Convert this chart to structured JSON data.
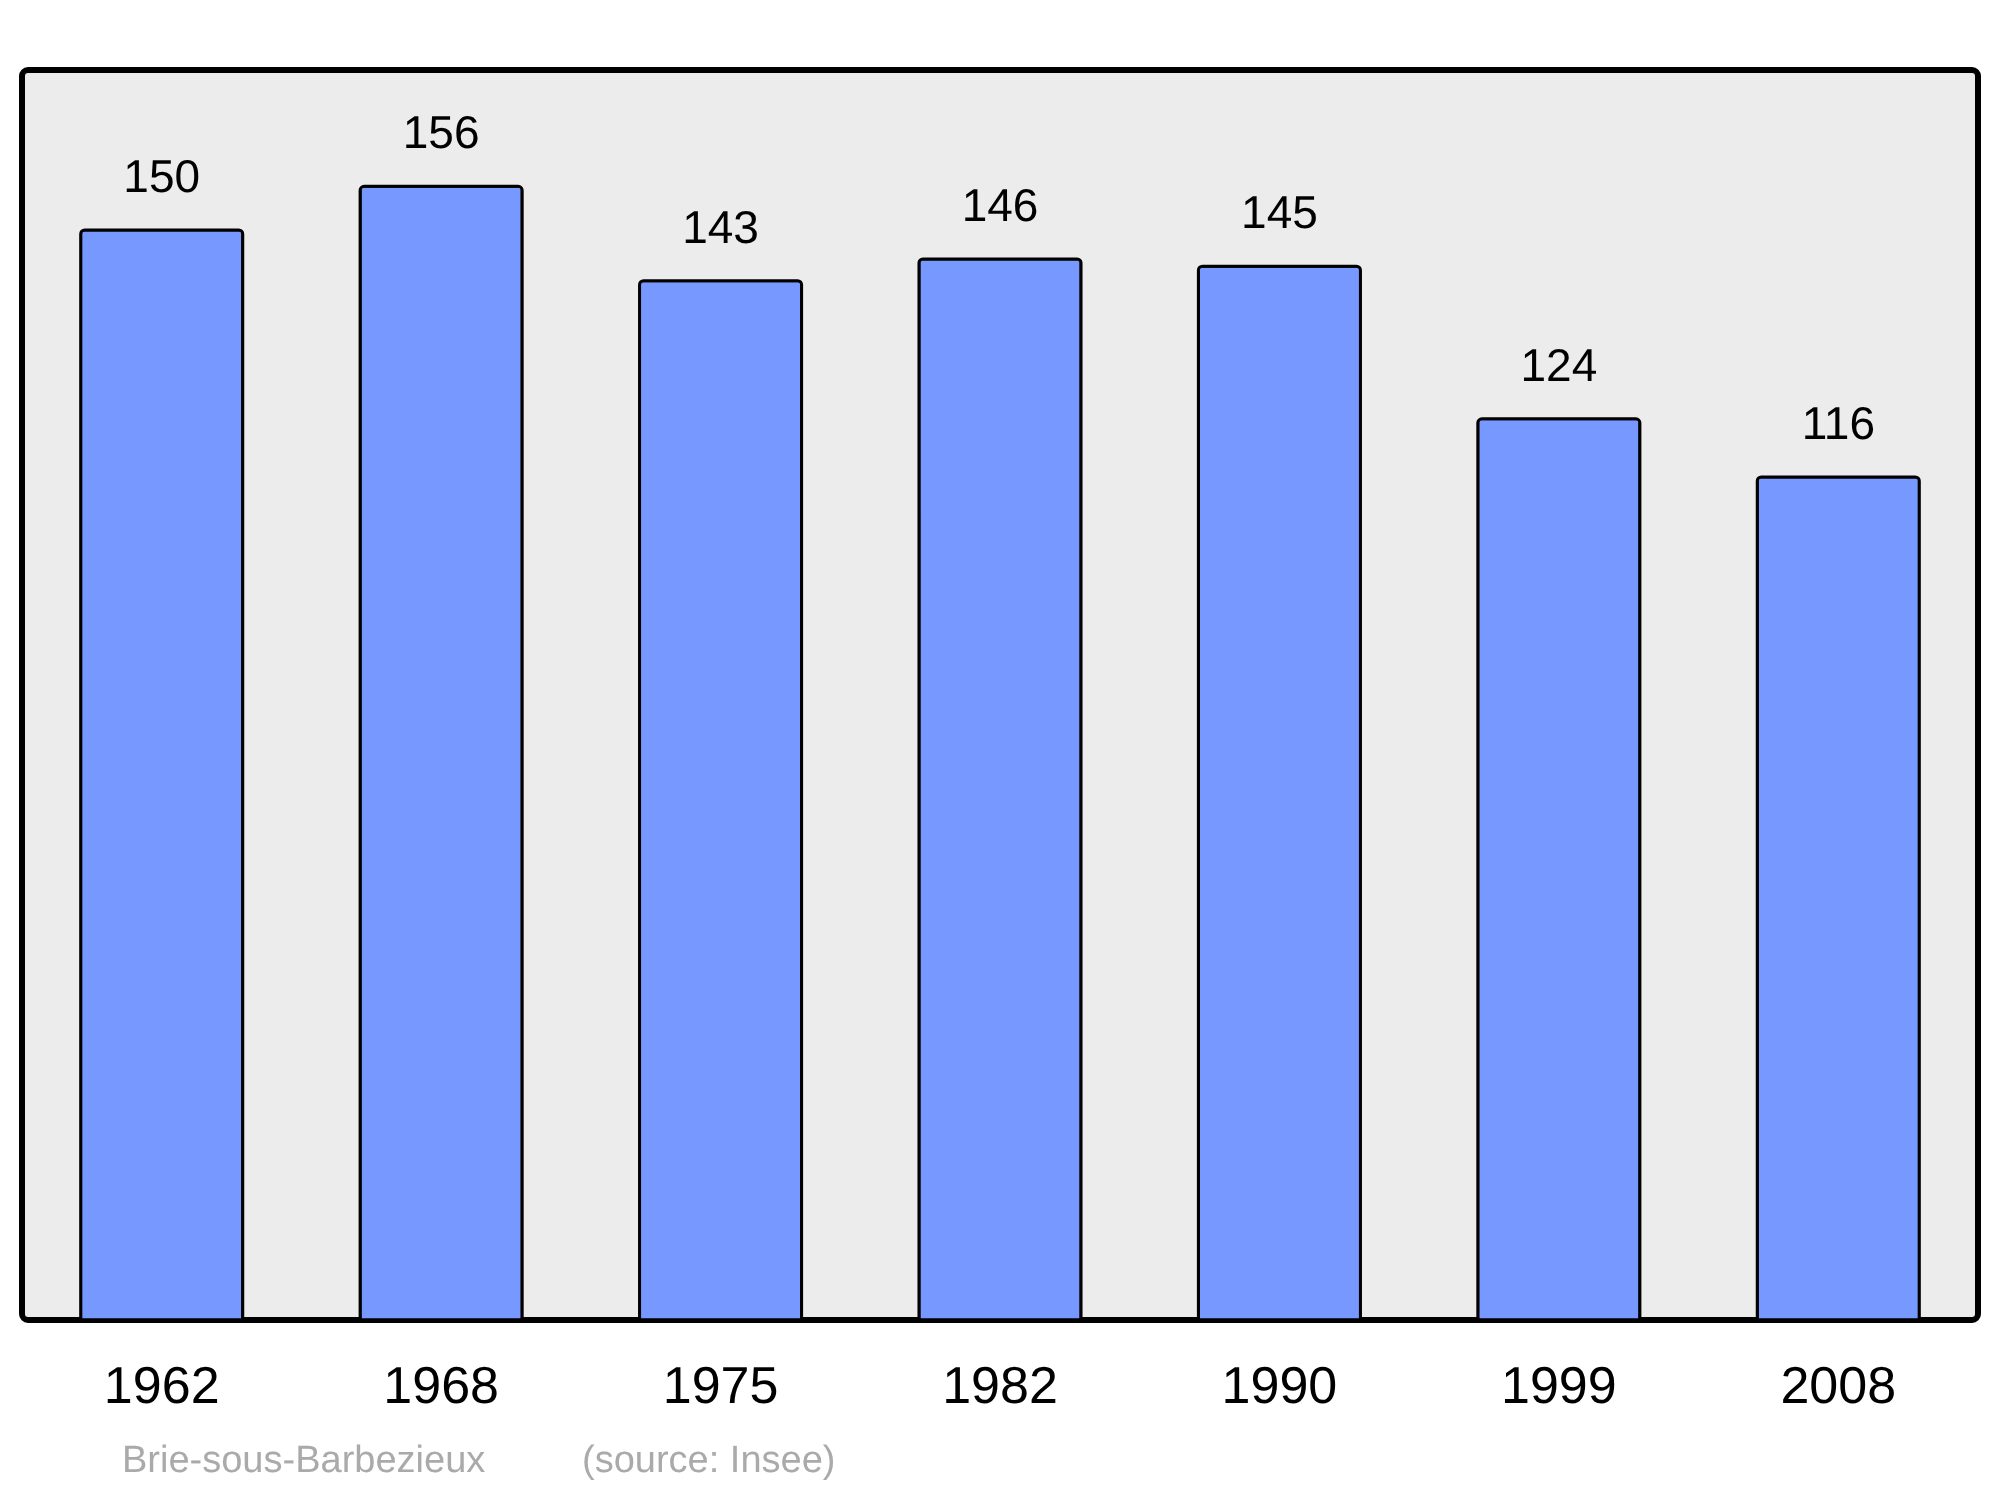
{
  "chart_data": {
    "type": "bar",
    "categories": [
      "1962",
      "1968",
      "1975",
      "1982",
      "1990",
      "1999",
      "2008"
    ],
    "values": [
      150,
      156,
      143,
      146,
      145,
      124,
      116
    ],
    "color": "#7799ff",
    "ylim": [
      0,
      172
    ],
    "data_labels": true,
    "grid": false,
    "annotations": [
      "Brie-sous-Barbezieux",
      "(source: Insee)"
    ]
  }
}
